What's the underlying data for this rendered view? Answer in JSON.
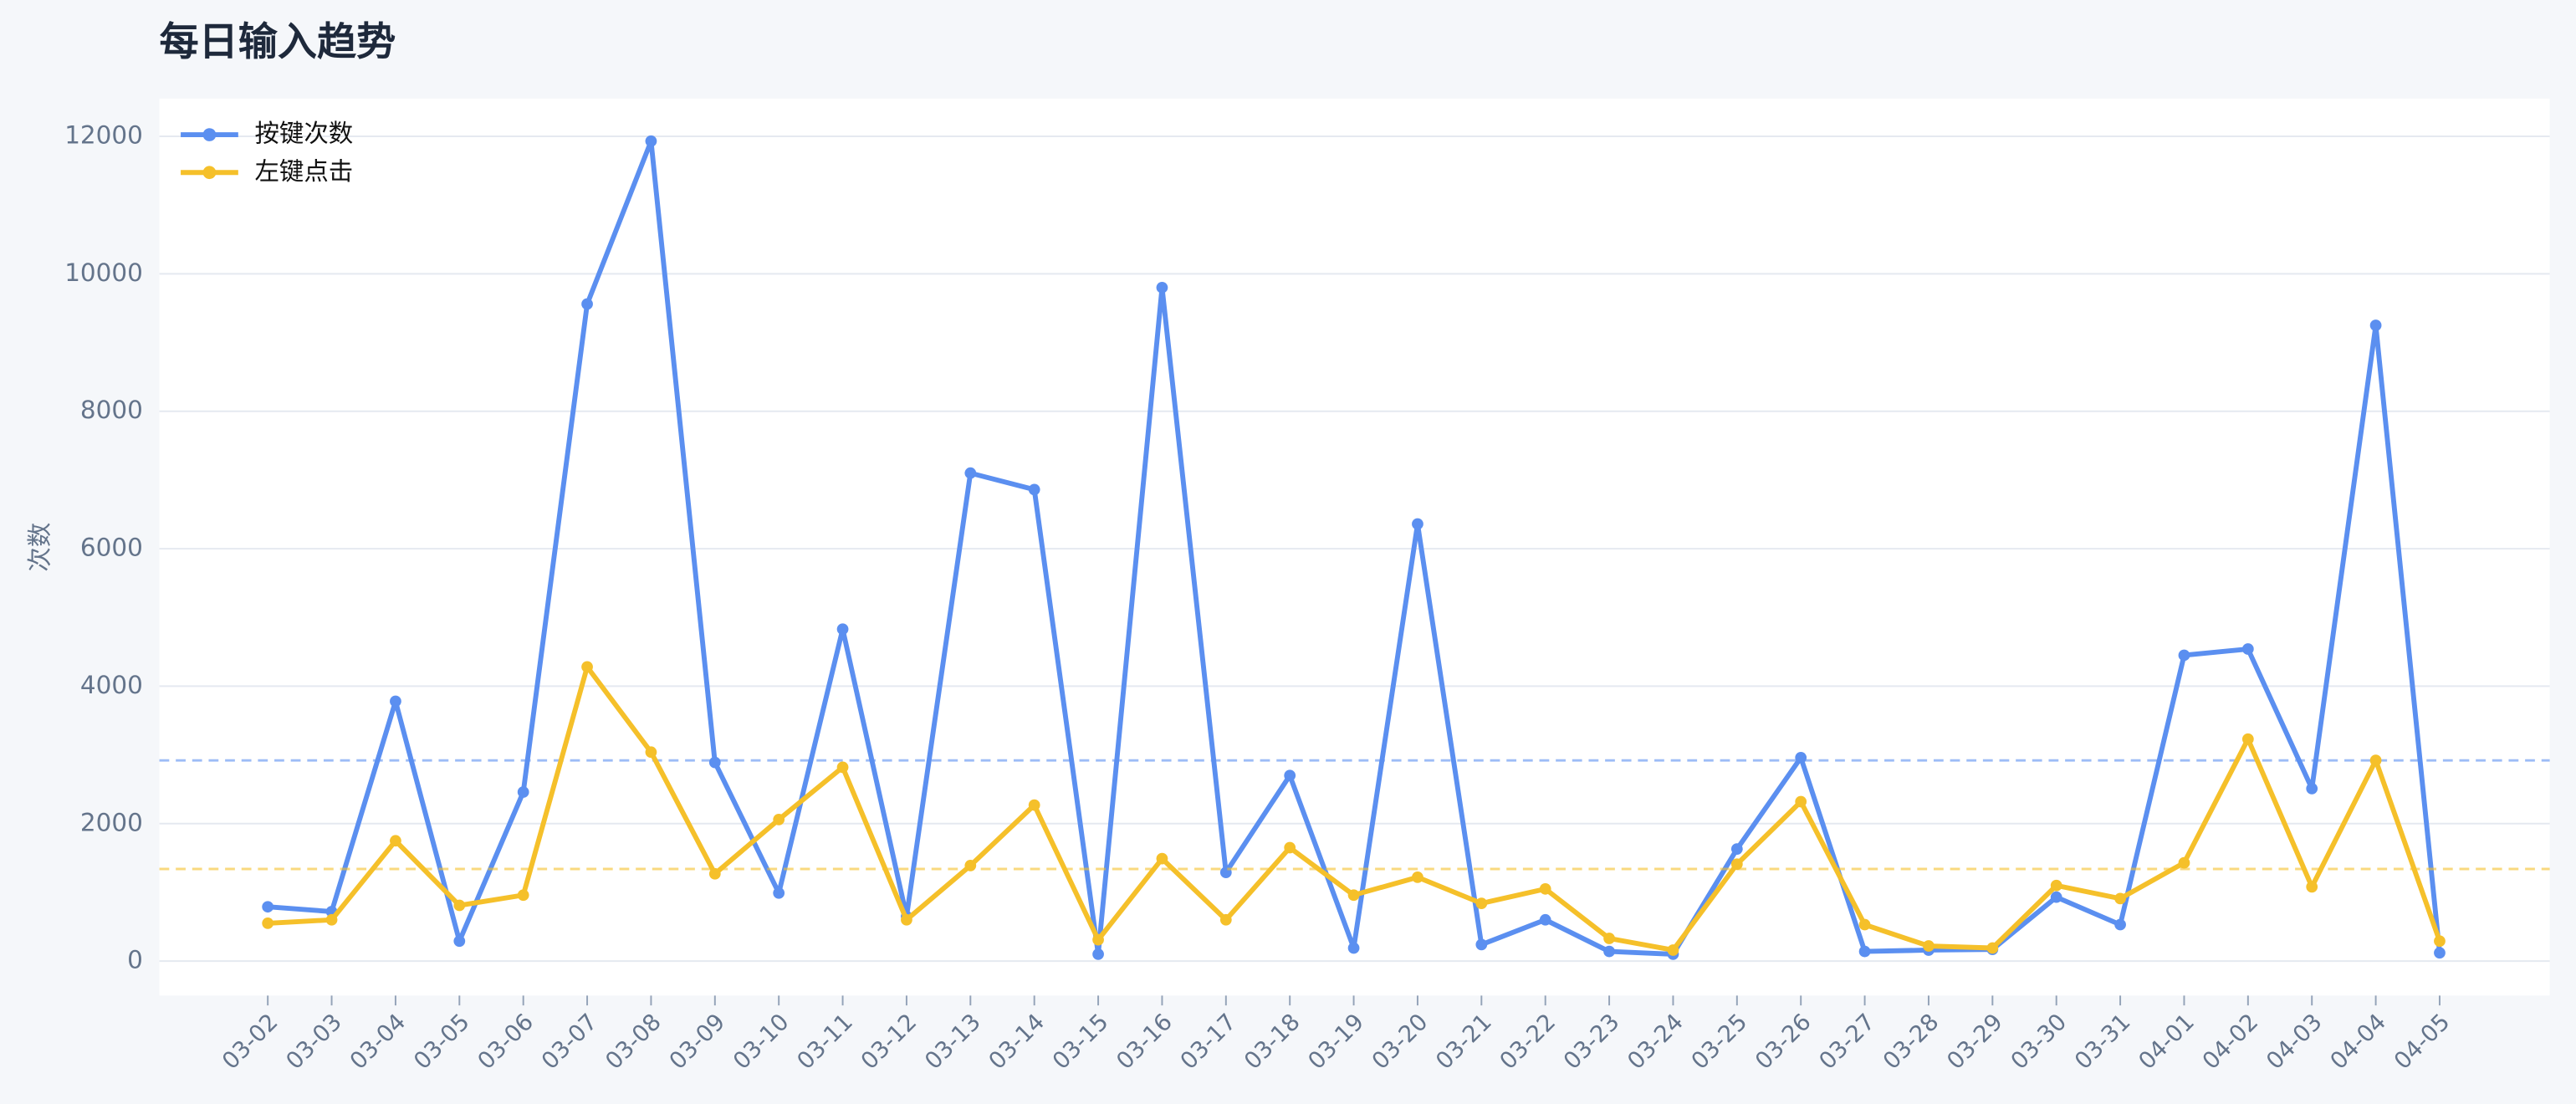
{
  "chart_data": {
    "type": "line",
    "title": "每日输入趋势",
    "y_label": "次数",
    "categories": [
      "03-02",
      "03-03",
      "03-04",
      "03-05",
      "03-06",
      "03-07",
      "03-08",
      "03-09",
      "03-10",
      "03-11",
      "03-12",
      "03-13",
      "03-14",
      "03-15",
      "03-16",
      "03-17",
      "03-18",
      "03-19",
      "03-20",
      "03-21",
      "03-22",
      "03-23",
      "03-24",
      "03-25",
      "03-26",
      "03-27",
      "03-28",
      "03-29",
      "03-30",
      "03-31",
      "04-01",
      "04-02",
      "04-03",
      "04-04",
      "04-05"
    ],
    "series": [
      {
        "name": "按键次数",
        "color": "#5b8ff0",
        "mean": 2920,
        "values": [
          790,
          720,
          3780,
          290,
          2460,
          9560,
          11930,
          2890,
          990,
          4830,
          650,
          7100,
          6860,
          100,
          9800,
          1290,
          2700,
          190,
          6360,
          240,
          600,
          140,
          100,
          1630,
          2960,
          140,
          160,
          170,
          930,
          530,
          4450,
          4540,
          2510,
          9250,
          120
        ]
      },
      {
        "name": "左键点击",
        "color": "#f5c02a",
        "mean": 1340,
        "values": [
          550,
          600,
          1750,
          810,
          960,
          4280,
          3040,
          1270,
          2060,
          2820,
          600,
          1390,
          2270,
          310,
          1490,
          600,
          1650,
          960,
          1220,
          840,
          1050,
          330,
          160,
          1410,
          2320,
          530,
          220,
          190,
          1100,
          910,
          1430,
          3230,
          1080,
          2920,
          290
        ]
      }
    ],
    "ylim": [
      0,
      12500
    ],
    "yticks": [
      0,
      2000,
      4000,
      6000,
      8000,
      10000,
      12000
    ],
    "grid": true,
    "legend": "top-left"
  }
}
